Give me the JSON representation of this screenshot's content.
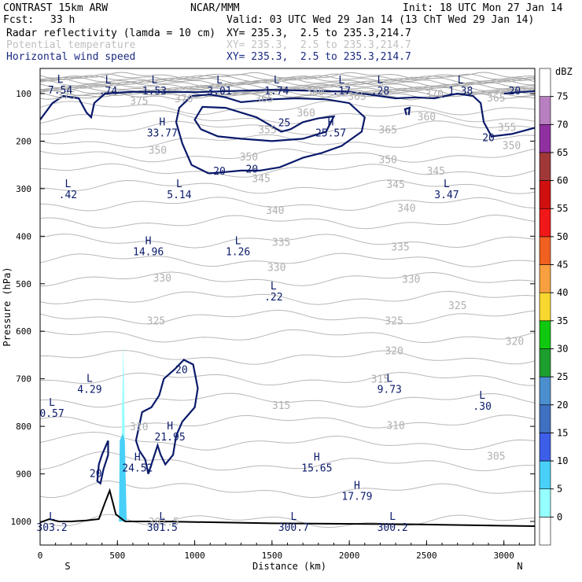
{
  "header": {
    "model": "CONTRAST 15km ARW",
    "org": "NCAR/MMM",
    "init": "Init: 18 UTC Mon 27 Jan 14",
    "fcst_label": "Fcst:",
    "fcst_value": "33 h",
    "valid": "Valid: 03 UTC Wed 29 Jan 14 (13 ChT Wed 29 Jan 14)",
    "fields": [
      {
        "name": "Radar reflectivity (lamda = 10 cm)",
        "xy": "XY= 235.3,  2.5 to 235.3,214.7",
        "color": "#000000"
      },
      {
        "name": "Potential temperature",
        "xy": "XY= 235.3,  2.5 to 235.3,214.7",
        "color": "#c0c0c0"
      },
      {
        "name": "Horizontal wind speed",
        "xy": "XY= 235.3,  2.5 to 235.3,214.7",
        "color": "#1a2a80"
      }
    ]
  },
  "chart_data": {
    "type": "cross-section",
    "xlabel": "Distance (km)",
    "ylabel": "Pressure (hPa)",
    "xlim": [
      0,
      3200
    ],
    "ylim": [
      1050,
      60
    ],
    "x_ticks": [
      0,
      500,
      1000,
      1500,
      2000,
      2500,
      3000
    ],
    "y_ticks": [
      100,
      200,
      300,
      400,
      500,
      600,
      700,
      800,
      900,
      1000
    ],
    "x_end_labels": {
      "left": "S",
      "right": "N"
    },
    "colorbar": {
      "unit": "dBZ",
      "levels": [
        0,
        5,
        10,
        15,
        20,
        25,
        30,
        35,
        40,
        45,
        50,
        55,
        60,
        65,
        70,
        75
      ],
      "colors": [
        "#ffffff",
        "#96ffff",
        "#48d0f8",
        "#3c5ee8",
        "#4070c0",
        "#4b8fcf",
        "#1e9e2e",
        "#10c810",
        "#f8d830",
        "#f8a040",
        "#f06020",
        "#f01818",
        "#d01010",
        "#a03838",
        "#9030a0",
        "#b880c0",
        "#ffffff"
      ]
    },
    "theta_contour_labels": [
      {
        "x": 640,
        "p": 115,
        "text": "375"
      },
      {
        "x": 930,
        "p": 110,
        "text": "370"
      },
      {
        "x": 1780,
        "p": 95,
        "text": "380"
      },
      {
        "x": 2050,
        "p": 105,
        "text": "365"
      },
      {
        "x": 2550,
        "p": 100,
        "text": "370"
      },
      {
        "x": 2950,
        "p": 108,
        "text": "365"
      },
      {
        "x": 170,
        "p": 103,
        "text": "375"
      },
      {
        "x": 1450,
        "p": 110,
        "text": "365"
      },
      {
        "x": 1720,
        "p": 140,
        "text": "360"
      },
      {
        "x": 2500,
        "p": 148,
        "text": "360"
      },
      {
        "x": 1470,
        "p": 175,
        "text": "355"
      },
      {
        "x": 2250,
        "p": 175,
        "text": "365"
      },
      {
        "x": 3020,
        "p": 170,
        "text": "355"
      },
      {
        "x": 3050,
        "p": 208,
        "text": "350"
      },
      {
        "x": 760,
        "p": 218,
        "text": "350"
      },
      {
        "x": 1350,
        "p": 232,
        "text": "350"
      },
      {
        "x": 2250,
        "p": 238,
        "text": "350"
      },
      {
        "x": 1430,
        "p": 278,
        "text": "345"
      },
      {
        "x": 2560,
        "p": 262,
        "text": "345"
      },
      {
        "x": 2300,
        "p": 290,
        "text": "345"
      },
      {
        "x": 1520,
        "p": 345,
        "text": "340"
      },
      {
        "x": 2370,
        "p": 340,
        "text": "340"
      },
      {
        "x": 1560,
        "p": 412,
        "text": "335"
      },
      {
        "x": 2330,
        "p": 422,
        "text": "335"
      },
      {
        "x": 1530,
        "p": 465,
        "text": "330"
      },
      {
        "x": 790,
        "p": 487,
        "text": "330"
      },
      {
        "x": 2400,
        "p": 490,
        "text": "330"
      },
      {
        "x": 2700,
        "p": 545,
        "text": "325"
      },
      {
        "x": 750,
        "p": 577,
        "text": "325"
      },
      {
        "x": 2290,
        "p": 577,
        "text": "325"
      },
      {
        "x": 2290,
        "p": 640,
        "text": "320"
      },
      {
        "x": 3070,
        "p": 620,
        "text": "320"
      },
      {
        "x": 2200,
        "p": 700,
        "text": "315"
      },
      {
        "x": 1560,
        "p": 755,
        "text": "315"
      },
      {
        "x": 640,
        "p": 800,
        "text": "310"
      },
      {
        "x": 2300,
        "p": 797,
        "text": "310"
      },
      {
        "x": 2950,
        "p": 862,
        "text": "305"
      },
      {
        "x": 800,
        "p": 1000,
        "text": "301.5"
      }
    ],
    "wind_contour_labels": [
      {
        "x": 1580,
        "p": 160,
        "text": "25"
      },
      {
        "x": 1160,
        "p": 262,
        "text": "20"
      },
      {
        "x": 1370,
        "p": 258,
        "text": "20"
      },
      {
        "x": 3070,
        "p": 93,
        "text": "20"
      },
      {
        "x": 2900,
        "p": 192,
        "text": "20"
      },
      {
        "x": 915,
        "p": 680,
        "text": "20"
      },
      {
        "x": 360,
        "p": 898,
        "text": "20"
      }
    ],
    "extrema": [
      {
        "kind": "L",
        "x": 130,
        "p": 80,
        "value": "7.54"
      },
      {
        "kind": "L",
        "x": 440,
        "p": 82,
        "value": ".74"
      },
      {
        "kind": "L",
        "x": 740,
        "p": 82,
        "value": "1.53"
      },
      {
        "kind": "L",
        "x": 1160,
        "p": 82,
        "value": "3.01"
      },
      {
        "kind": "L",
        "x": 1530,
        "p": 82,
        "value": "1.74"
      },
      {
        "kind": "L",
        "x": 1950,
        "p": 82,
        "value": ".17"
      },
      {
        "kind": "L",
        "x": 2200,
        "p": 82,
        "value": ".28"
      },
      {
        "kind": "L",
        "x": 2720,
        "p": 82,
        "value": "1.38"
      },
      {
        "kind": "H",
        "x": 790,
        "p": 170,
        "value": "33.77"
      },
      {
        "kind": "H",
        "x": 1880,
        "p": 170,
        "value": "25.57"
      },
      {
        "kind": "L",
        "x": 180,
        "p": 300,
        "value": ".42"
      },
      {
        "kind": "L",
        "x": 900,
        "p": 300,
        "value": "5.14"
      },
      {
        "kind": "L",
        "x": 2630,
        "p": 300,
        "value": "3.47"
      },
      {
        "kind": "H",
        "x": 700,
        "p": 420,
        "value": "14.96"
      },
      {
        "kind": "L",
        "x": 1280,
        "p": 420,
        "value": "1.26"
      },
      {
        "kind": "L",
        "x": 1510,
        "p": 515,
        "value": ".22"
      },
      {
        "kind": "L",
        "x": 320,
        "p": 710,
        "value": "4.29"
      },
      {
        "kind": "L",
        "x": 2260,
        "p": 710,
        "value": "9.73"
      },
      {
        "kind": "L",
        "x": 2860,
        "p": 745,
        "value": ".30"
      },
      {
        "kind": "L",
        "x": 0,
        "p": 760,
        "value": "0.57"
      },
      {
        "kind": "H",
        "x": 840,
        "p": 810,
        "value": "21.95"
      },
      {
        "kind": "H",
        "x": 630,
        "p": 875,
        "value": "24.52"
      },
      {
        "kind": "H",
        "x": 1790,
        "p": 875,
        "value": "15.65"
      },
      {
        "kind": "H",
        "x": 2050,
        "p": 935,
        "value": "17.79"
      },
      {
        "kind": "L",
        "x": 40,
        "p": 1000,
        "value": "303.2"
      },
      {
        "kind": "L",
        "x": 790,
        "p": 1000,
        "value": "301.5"
      },
      {
        "kind": "L",
        "x": 1640,
        "p": 1000,
        "value": "300.7"
      },
      {
        "kind": "L",
        "x": 2280,
        "p": 1000,
        "value": "300.2"
      }
    ],
    "terrain_surface_pressure": [
      {
        "x": 0,
        "p": 1002
      },
      {
        "x": 60,
        "p": 995
      },
      {
        "x": 120,
        "p": 1000
      },
      {
        "x": 200,
        "p": 1000
      },
      {
        "x": 300,
        "p": 998
      },
      {
        "x": 380,
        "p": 995
      },
      {
        "x": 420,
        "p": 960
      },
      {
        "x": 450,
        "p": 935
      },
      {
        "x": 490,
        "p": 985
      },
      {
        "x": 550,
        "p": 1000
      },
      {
        "x": 800,
        "p": 1000
      },
      {
        "x": 1500,
        "p": 1004
      },
      {
        "x": 2400,
        "p": 1006
      },
      {
        "x": 3200,
        "p": 1010
      }
    ]
  }
}
